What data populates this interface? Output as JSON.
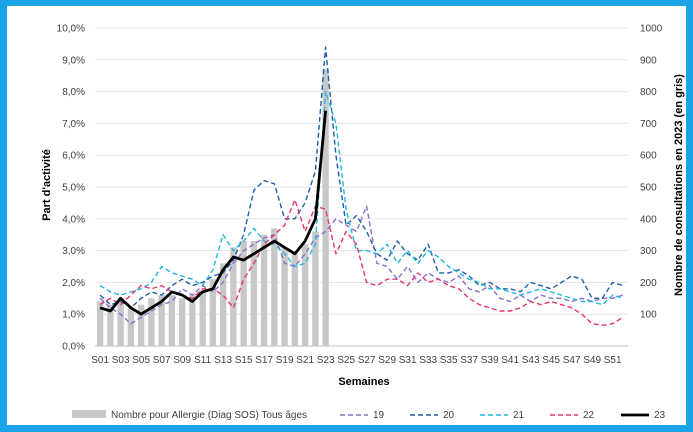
{
  "chart_data": {
    "type": "bar+line",
    "title": "",
    "xlabel": "Semaines",
    "ylabel_left": "Part d'activité",
    "ylabel_right": "Nombre de consultations en 2023 (en gris)",
    "left_axis": {
      "ylim": [
        0,
        10
      ],
      "ticks": [
        "0,0%",
        "1,0%",
        "2,0%",
        "3,0%",
        "4,0%",
        "5,0%",
        "6,0%",
        "7,0%",
        "8,0%",
        "9,0%",
        "10,0%"
      ]
    },
    "right_axis": {
      "ylim": [
        0,
        1000
      ],
      "ticks": [
        "100",
        "200",
        "300",
        "400",
        "500",
        "600",
        "700",
        "800",
        "900",
        "1000"
      ]
    },
    "x_ticks": [
      "S01",
      "S03",
      "S05",
      "S07",
      "S09",
      "S11",
      "S13",
      "S15",
      "S17",
      "S19",
      "S21",
      "S23",
      "S25",
      "S27",
      "S29",
      "S31",
      "S33",
      "S35",
      "S37",
      "S39",
      "S41",
      "S43",
      "S45",
      "S47",
      "S49",
      "S51"
    ],
    "weeks": 52,
    "bars": {
      "name": "Nombre pour Allergie (Diag SOS) Tous âges",
      "color": "#c8c8c8",
      "values": [
        140,
        130,
        150,
        120,
        130,
        150,
        160,
        160,
        150,
        165,
        175,
        210,
        260,
        310,
        330,
        330,
        350,
        370,
        310,
        290,
        320,
        360,
        870
      ]
    },
    "series": [
      {
        "name": "19",
        "color": "#8a6fc8",
        "values": [
          1.5,
          1.2,
          1.0,
          0.7,
          0.9,
          1.1,
          1.3,
          1.4,
          1.8,
          1.6,
          1.9,
          1.7,
          2.0,
          2.6,
          3.0,
          3.2,
          3.4,
          3.5,
          2.6,
          2.5,
          2.9,
          3.4,
          3.6,
          4.0,
          3.8,
          3.6,
          4.4,
          2.6,
          2.5,
          2.1,
          2.5,
          2.0,
          2.3,
          2.1,
          2.0,
          2.2,
          1.8,
          1.7,
          1.9,
          1.5,
          1.4,
          1.6,
          1.4,
          1.6,
          1.5,
          1.5,
          1.4,
          1.5,
          1.4,
          1.5,
          1.5,
          1.6
        ]
      },
      {
        "name": "20",
        "color": "#1f5fa8",
        "values": [
          1.6,
          1.3,
          1.4,
          1.2,
          1.5,
          1.7,
          1.6,
          1.9,
          2.1,
          1.9,
          2.0,
          2.2,
          2.3,
          2.7,
          3.5,
          4.9,
          5.2,
          5.1,
          4.0,
          4.0,
          4.5,
          5.5,
          9.4,
          6.0,
          3.8,
          4.1,
          3.6,
          2.9,
          2.7,
          3.3,
          2.9,
          2.7,
          3.2,
          2.3,
          2.3,
          2.4,
          2.2,
          1.9,
          2.0,
          1.8,
          1.8,
          1.7,
          2.0,
          1.9,
          1.8,
          2.0,
          2.2,
          2.1,
          1.5,
          1.5,
          2.0,
          1.9
        ]
      },
      {
        "name": "21",
        "color": "#22b5e0",
        "values": [
          1.9,
          1.7,
          1.6,
          1.7,
          1.8,
          2.0,
          2.5,
          2.3,
          2.2,
          2.1,
          1.9,
          2.4,
          3.5,
          3.0,
          3.3,
          3.7,
          3.3,
          3.2,
          2.9,
          2.5,
          2.6,
          3.2,
          8.0,
          7.0,
          4.3,
          3.0,
          3.0,
          2.9,
          3.2,
          2.6,
          3.0,
          2.6,
          3.0,
          2.8,
          2.5,
          2.3,
          2.1,
          2.0,
          1.8,
          1.8,
          1.7,
          1.6,
          1.7,
          1.8,
          1.7,
          1.6,
          1.5,
          1.4,
          1.4,
          1.3,
          1.6,
          1.5
        ]
      },
      {
        "name": "22",
        "color": "#e8336e",
        "values": [
          1.3,
          1.5,
          1.3,
          1.6,
          1.9,
          1.8,
          1.9,
          1.7,
          1.6,
          1.5,
          1.8,
          1.8,
          1.6,
          1.2,
          2.1,
          2.6,
          3.2,
          3.5,
          3.8,
          4.6,
          3.6,
          4.4,
          4.3,
          2.9,
          3.6,
          3.2,
          2.0,
          1.9,
          2.1,
          2.1,
          1.9,
          2.3,
          2.0,
          2.1,
          1.9,
          1.8,
          1.5,
          1.3,
          1.2,
          1.1,
          1.1,
          1.2,
          1.4,
          1.3,
          1.4,
          1.3,
          1.2,
          1.0,
          0.7,
          0.65,
          0.7,
          0.9
        ]
      },
      {
        "name": "23",
        "color": "#000000",
        "values": [
          1.2,
          1.1,
          1.5,
          1.2,
          1.0,
          1.2,
          1.4,
          1.7,
          1.6,
          1.4,
          1.7,
          1.8,
          2.4,
          2.8,
          2.7,
          2.9,
          3.1,
          3.3,
          3.1,
          2.9,
          3.3,
          4.0,
          7.4
        ]
      }
    ],
    "legend_position": "bottom",
    "grid": true
  }
}
